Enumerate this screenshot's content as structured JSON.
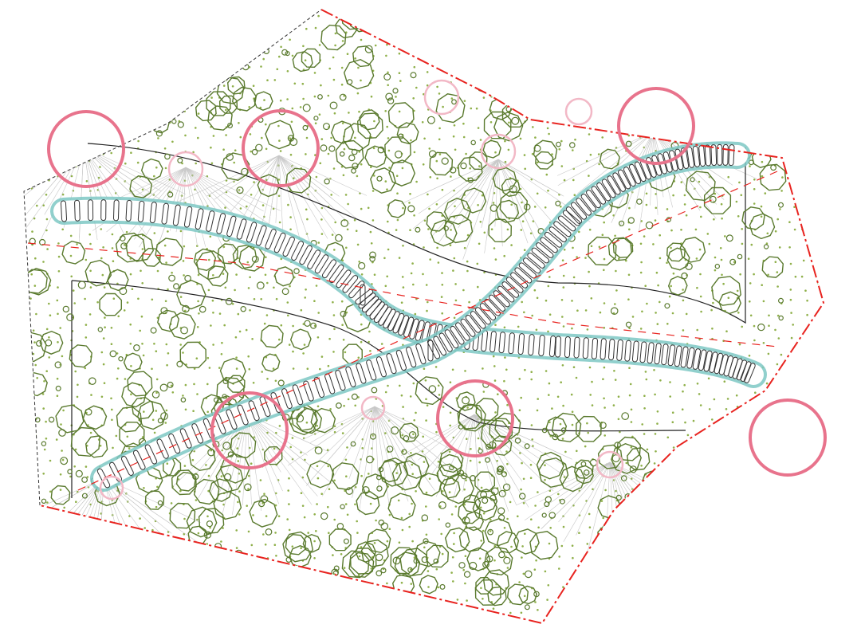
{
  "colors": {
    "background": "#ffffff",
    "site_boundary": "#e8231f",
    "outline": "#222222",
    "tree_canopy": "#5a7a2e",
    "grass_dot": "#8fb04a",
    "highlight_ring": "#e8738c",
    "light_ring": "#f2b8c6",
    "path_edge": "#7ec8c4",
    "path_rung": "#333333",
    "hatch": "#c8c8c8"
  },
  "icons": {
    "tree": "octagon-outline",
    "shrub": "small-circle",
    "grass": "dot",
    "viewpoint": "circle-ring"
  }
}
